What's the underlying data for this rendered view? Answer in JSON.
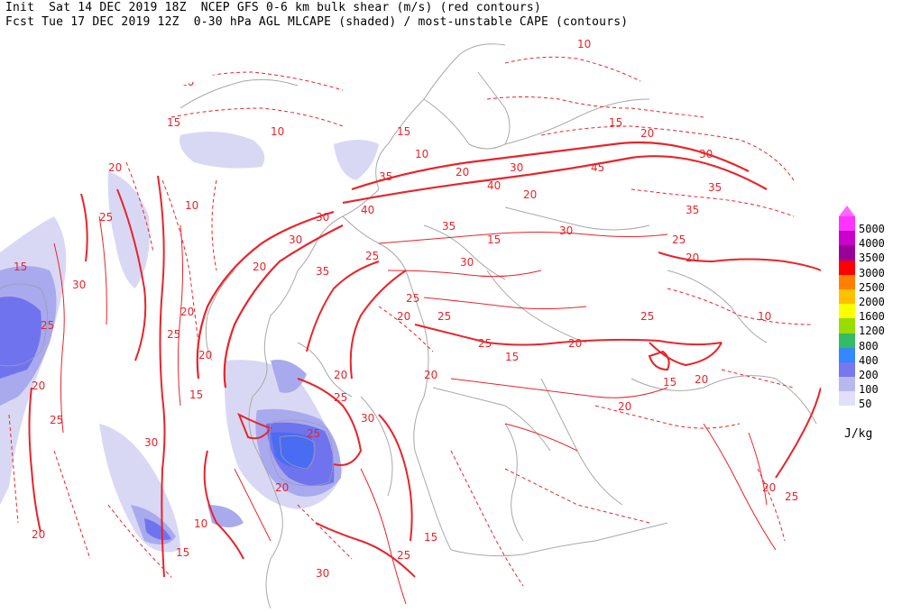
{
  "header": {
    "line1": "Init  Sat 14 DEC 2019 18Z  NCEP GFS 0-6 km bulk shear (m/s) (red contours)",
    "line2": "Fcst Tue 17 DEC 2019 12Z  0-30 hPa AGL MLCAPE (shaded) / most-unstable CAPE (contours)"
  },
  "legend": {
    "unit": "J/kg",
    "levels": [
      {
        "value": "5000",
        "color": "#ff33ff"
      },
      {
        "value": "4000",
        "color": "#cc00cc"
      },
      {
        "value": "3500",
        "color": "#990099"
      },
      {
        "value": "3000",
        "color": "#ff0000"
      },
      {
        "value": "2500",
        "color": "#ff8000"
      },
      {
        "value": "2000",
        "color": "#ffc000"
      },
      {
        "value": "1600",
        "color": "#ffff00"
      },
      {
        "value": "1200",
        "color": "#99dd00"
      },
      {
        "value": "800",
        "color": "#33bb66"
      },
      {
        "value": "400",
        "color": "#3388ff"
      },
      {
        "value": "200",
        "color": "#7777ee"
      },
      {
        "value": "100",
        "color": "#b8b8f0"
      },
      {
        "value": "50",
        "color": "#e0e0f8"
      }
    ]
  },
  "contour_labels": [
    "10",
    "10",
    "10",
    "15",
    "15",
    "20",
    "20",
    "25",
    "25",
    "30",
    "30",
    "35",
    "35",
    "40",
    "45",
    "20",
    "25",
    "30",
    "35",
    "40",
    "25",
    "20",
    "15",
    "10",
    "15",
    "20",
    "25",
    "30",
    "35",
    "25",
    "20",
    "25",
    "30",
    "20",
    "15",
    "25",
    "30",
    "20",
    "25",
    "20",
    "10",
    "20",
    "15",
    "25",
    "20",
    "25",
    "30",
    "15",
    "20",
    "10",
    "20",
    "20",
    "25",
    "20",
    "15",
    "25",
    "30",
    "20",
    "15",
    "30",
    "25",
    "20",
    "15",
    "10",
    "25",
    "30",
    "35"
  ],
  "colors": {
    "shear_contour": "#e8242b",
    "coastline": "#a8a8a8",
    "cape_low": "#d8d8f5",
    "cape_mid": "#a9a9ee",
    "cape_high": "#6f74ee",
    "cape_max": "#4a6cf2"
  }
}
